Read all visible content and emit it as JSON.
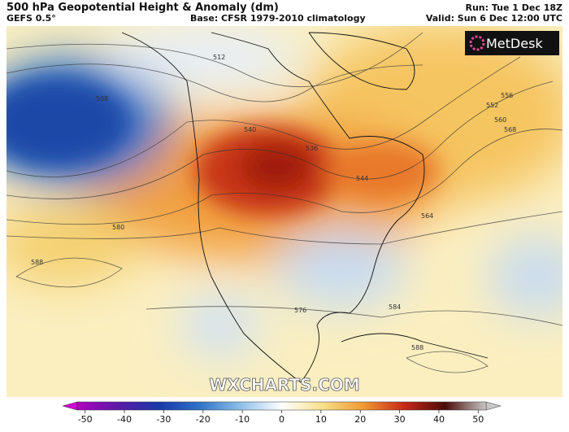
{
  "header": {
    "title": "500 hPa Geopotential Height & Anomaly (dm)",
    "model": "GEFS 0.5°",
    "base": "Base: CFSR 1979-2010 climatology",
    "run": "Run: Tue 1 Dec 18Z",
    "valid": "Valid: Sun 6 Dec 12:00 UTC"
  },
  "logo": "MetDesk",
  "watermark": "WXCHARTS.COM",
  "contour_labels": [
    "512",
    "508",
    "540",
    "536",
    "544",
    "552",
    "556",
    "560",
    "568",
    "564",
    "580",
    "588",
    "576",
    "584",
    "588"
  ],
  "colorbar": {
    "lim": [
      -52,
      52
    ],
    "ticks": [
      -50,
      -40,
      -30,
      -20,
      -10,
      0,
      10,
      20,
      30,
      40,
      50
    ]
  }
}
